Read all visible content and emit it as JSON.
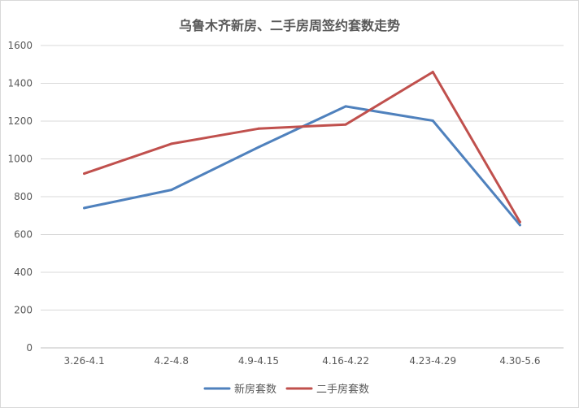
{
  "chart_data": {
    "type": "line",
    "title": "乌鲁木齐新房、二手房周签约套数走势",
    "categories": [
      "3.26-4.1",
      "4.2-4.8",
      "4.9-4.15",
      "4.16-4.22",
      "4.23-4.29",
      "4.30-5.6"
    ],
    "series": [
      {
        "name": "新房套数",
        "color": "#4f81bd",
        "values": [
          740,
          836,
          1062,
          1278,
          1202,
          650
        ]
      },
      {
        "name": "二手房套数",
        "color": "#c0504d",
        "values": [
          922,
          1080,
          1160,
          1182,
          1460,
          666
        ]
      }
    ],
    "ylim": [
      0,
      1600
    ],
    "yticks": [
      0,
      200,
      400,
      600,
      800,
      1000,
      1200,
      1400,
      1600
    ],
    "grid": true,
    "legend": "bottom"
  }
}
